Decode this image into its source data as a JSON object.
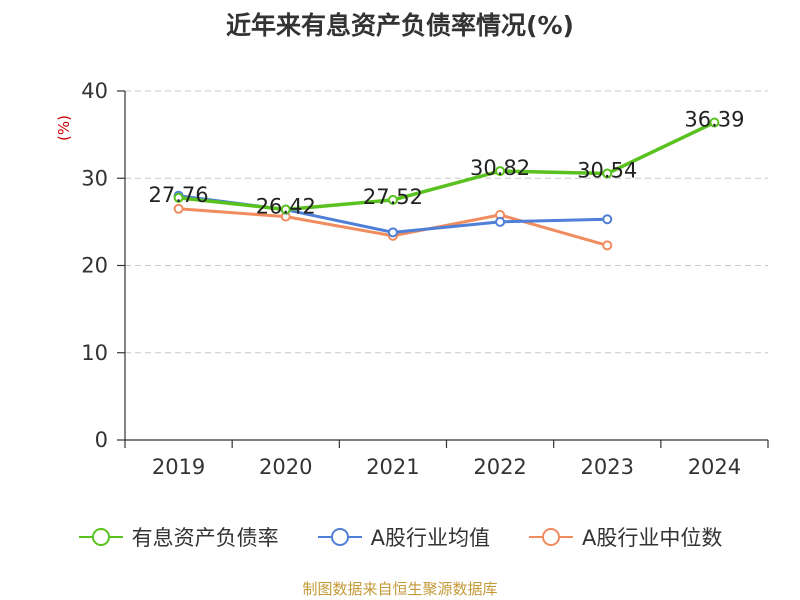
{
  "chart_data": {
    "type": "line",
    "title": "近年来有息资产负债率情况(%)",
    "ylabel": "(%)",
    "xlabel": "",
    "categories": [
      "2019",
      "2020",
      "2021",
      "2022",
      "2023",
      "2024"
    ],
    "ylim": [
      0,
      40
    ],
    "yticks": [
      0,
      10,
      20,
      30,
      40
    ],
    "grid": "horizontal-dashed",
    "legend_position": "bottom",
    "series": [
      {
        "name": "有息资产负债率",
        "color": "#5ac21e",
        "values": [
          27.76,
          26.42,
          27.52,
          30.82,
          30.54,
          36.39
        ],
        "labels": [
          "27.76",
          "26.42",
          "27.52",
          "30.82",
          "30.54",
          "36.39"
        ]
      },
      {
        "name": "A股行业均值",
        "color": "#4f7fd6",
        "values": [
          28.0,
          26.4,
          23.8,
          25.0,
          25.3,
          null
        ]
      },
      {
        "name": "A股行业中位数",
        "color": "#f08c5e",
        "values": [
          26.5,
          25.6,
          23.4,
          25.8,
          22.3,
          null
        ]
      }
    ]
  },
  "footer": {
    "source": "制图数据来自恒生聚源数据库"
  }
}
